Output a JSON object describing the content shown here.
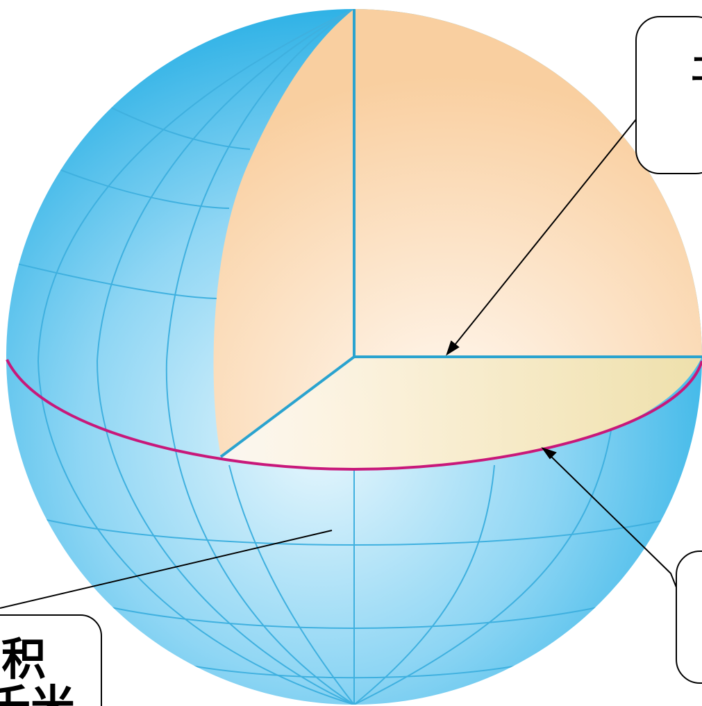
{
  "diagram": {
    "colors": {
      "sphere_light": "#e8f7fd",
      "sphere_mid": "#8fd6f4",
      "sphere_dark": "#2fb2e6",
      "grid_line": "#3fb0df",
      "cut_light": "#fff8f0",
      "cut_mid": "#f9cfa0",
      "cut_floor": "#fde3a6",
      "radius_line": "#2aa3cf",
      "equator": "#c8187a",
      "callout_border": "#000000",
      "pointer": "#000000"
    },
    "callouts": {
      "top_right": {
        "icon": "radius-callout",
        "text": "ヱ"
      },
      "bottom_right": {
        "icon": "great-circle-callout",
        "text": ""
      },
      "bottom_left": {
        "icon": "surface-area-callout",
        "line1": "积",
        "line2": "千米"
      }
    }
  }
}
